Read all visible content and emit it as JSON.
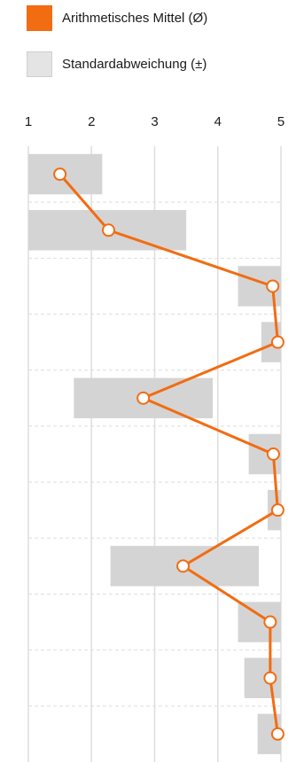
{
  "legend": {
    "mean_label": "Arithmetisches Mittel (Ø)",
    "sd_label": "Standardabweichung (±)"
  },
  "colors": {
    "mean": "#f26c12",
    "sd_band": "#d4d4d4",
    "sd_swatch": "#e4e4e4",
    "grid": "#dedede",
    "marker_fill": "#ffffff"
  },
  "chart_data": {
    "type": "line",
    "orientation": "horizontal",
    "xlim": [
      1,
      5
    ],
    "x_ticks": [
      "1",
      "2",
      "3",
      "4",
      "5"
    ],
    "legend_position": "top-left",
    "grid": true,
    "series": [
      {
        "name": "Arithmetisches Mittel (Ø)",
        "values": [
          1.5,
          2.27,
          4.87,
          4.95,
          2.82,
          4.88,
          4.95,
          3.45,
          4.83,
          4.83,
          4.95
        ]
      },
      {
        "name": "Standardabweichung (±)",
        "ranges": [
          [
            1.0,
            2.17
          ],
          [
            1.0,
            3.5
          ],
          [
            4.32,
            5.0
          ],
          [
            4.69,
            5.0
          ],
          [
            1.72,
            3.92
          ],
          [
            4.49,
            5.0
          ],
          [
            4.79,
            5.0
          ],
          [
            2.3,
            4.65
          ],
          [
            4.32,
            5.0
          ],
          [
            4.42,
            5.0
          ],
          [
            4.63,
            5.0
          ]
        ]
      }
    ]
  }
}
